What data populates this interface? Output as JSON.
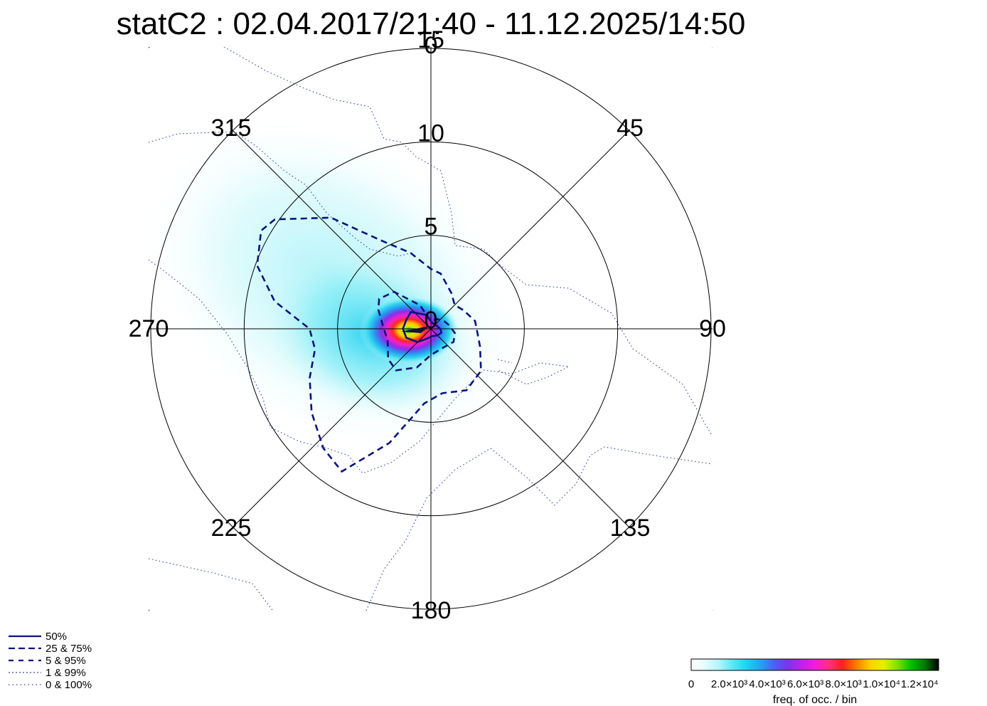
{
  "chart_data": {
    "type": "polar-histogram",
    "title": "statC2 : 02.04.2017/21:40 - 11.12.2025/14:50",
    "direction_labels": [
      "0",
      "45",
      "90",
      "135",
      "180",
      "225",
      "270",
      "315"
    ],
    "direction_values": [
      0,
      45,
      90,
      135,
      180,
      225,
      270,
      315
    ],
    "radial_ticks": [
      "0",
      "5",
      "10",
      "15"
    ],
    "radial_values": [
      0,
      5,
      10,
      15
    ],
    "rmax": 15,
    "percentile_contours": [
      {
        "label": "50%",
        "style": "solid",
        "points": [
          [
            290,
            1.4
          ],
          [
            270,
            1.5
          ],
          [
            250,
            1.4
          ],
          [
            225,
            1.0
          ],
          [
            200,
            0.55
          ],
          [
            170,
            0.4
          ],
          [
            135,
            0.5
          ],
          [
            110,
            0.6
          ],
          [
            90,
            0.5
          ],
          [
            60,
            0.35
          ],
          [
            20,
            0.3
          ],
          [
            340,
            0.8
          ],
          [
            310,
            1.4
          ]
        ]
      },
      {
        "label": "25 &  75%",
        "style": "dashed",
        "points": [
          [
            300,
            3.2
          ],
          [
            290,
            3.0
          ],
          [
            275,
            2.6
          ],
          [
            255,
            2.4
          ],
          [
            235,
            2.8
          ],
          [
            220,
            2.9
          ],
          [
            200,
            2.2
          ],
          [
            180,
            1.4
          ],
          [
            150,
            1.2
          ],
          [
            120,
            1.4
          ],
          [
            100,
            1.3
          ],
          [
            80,
            1.0
          ],
          [
            55,
            0.8
          ],
          [
            30,
            0.6
          ],
          [
            0,
            0.4
          ],
          [
            335,
            1.4
          ],
          [
            315,
            2.8
          ]
        ]
      },
      {
        "label": "5 &  95%",
        "style": "dashed",
        "points": [
          [
            305,
            10.2
          ],
          [
            300,
            10.5
          ],
          [
            290,
            9.9
          ],
          [
            280,
            8.5
          ],
          [
            270,
            6.5
          ],
          [
            260,
            6.3
          ],
          [
            248,
            7.0
          ],
          [
            235,
            7.8
          ],
          [
            222,
            8.6
          ],
          [
            212,
            9.0
          ],
          [
            200,
            6.5
          ],
          [
            185,
            4.0
          ],
          [
            170,
            3.5
          ],
          [
            150,
            3.8
          ],
          [
            130,
            3.5
          ],
          [
            110,
            2.8
          ],
          [
            95,
            2.5
          ],
          [
            80,
            2.4
          ],
          [
            60,
            2.0
          ],
          [
            45,
            1.8
          ],
          [
            30,
            2.2
          ],
          [
            10,
            3.0
          ],
          [
            0,
            3.2
          ],
          [
            345,
            4.2
          ],
          [
            330,
            5.5
          ],
          [
            318,
            8.0
          ]
        ]
      },
      {
        "label": "1 &  99%",
        "style": "dotted"
      },
      {
        "label": "0 & 100%",
        "style": "dotted"
      }
    ],
    "colorbar": {
      "label": "freq. of occ. / bin",
      "ticks": [
        "0",
        "2.0×10³",
        "4.0×10³",
        "6.0×10³",
        "8.0×10³",
        "1.0×10⁴",
        "1.2×10⁴"
      ],
      "tick_values": [
        0,
        2000,
        4000,
        6000,
        8000,
        10000,
        12000
      ],
      "max": 13000,
      "colors": [
        "#ffffff",
        "#e6fbfd",
        "#b4f5fa",
        "#5de7f3",
        "#1fd3ef",
        "#22a6f0",
        "#4a63ee",
        "#7a36e8",
        "#bb22e6",
        "#f01ed8",
        "#ff3080",
        "#ff2020",
        "#ff7a00",
        "#ffd000",
        "#e6f000",
        "#80e000",
        "#00c000",
        "#007a00",
        "#000000"
      ]
    }
  }
}
